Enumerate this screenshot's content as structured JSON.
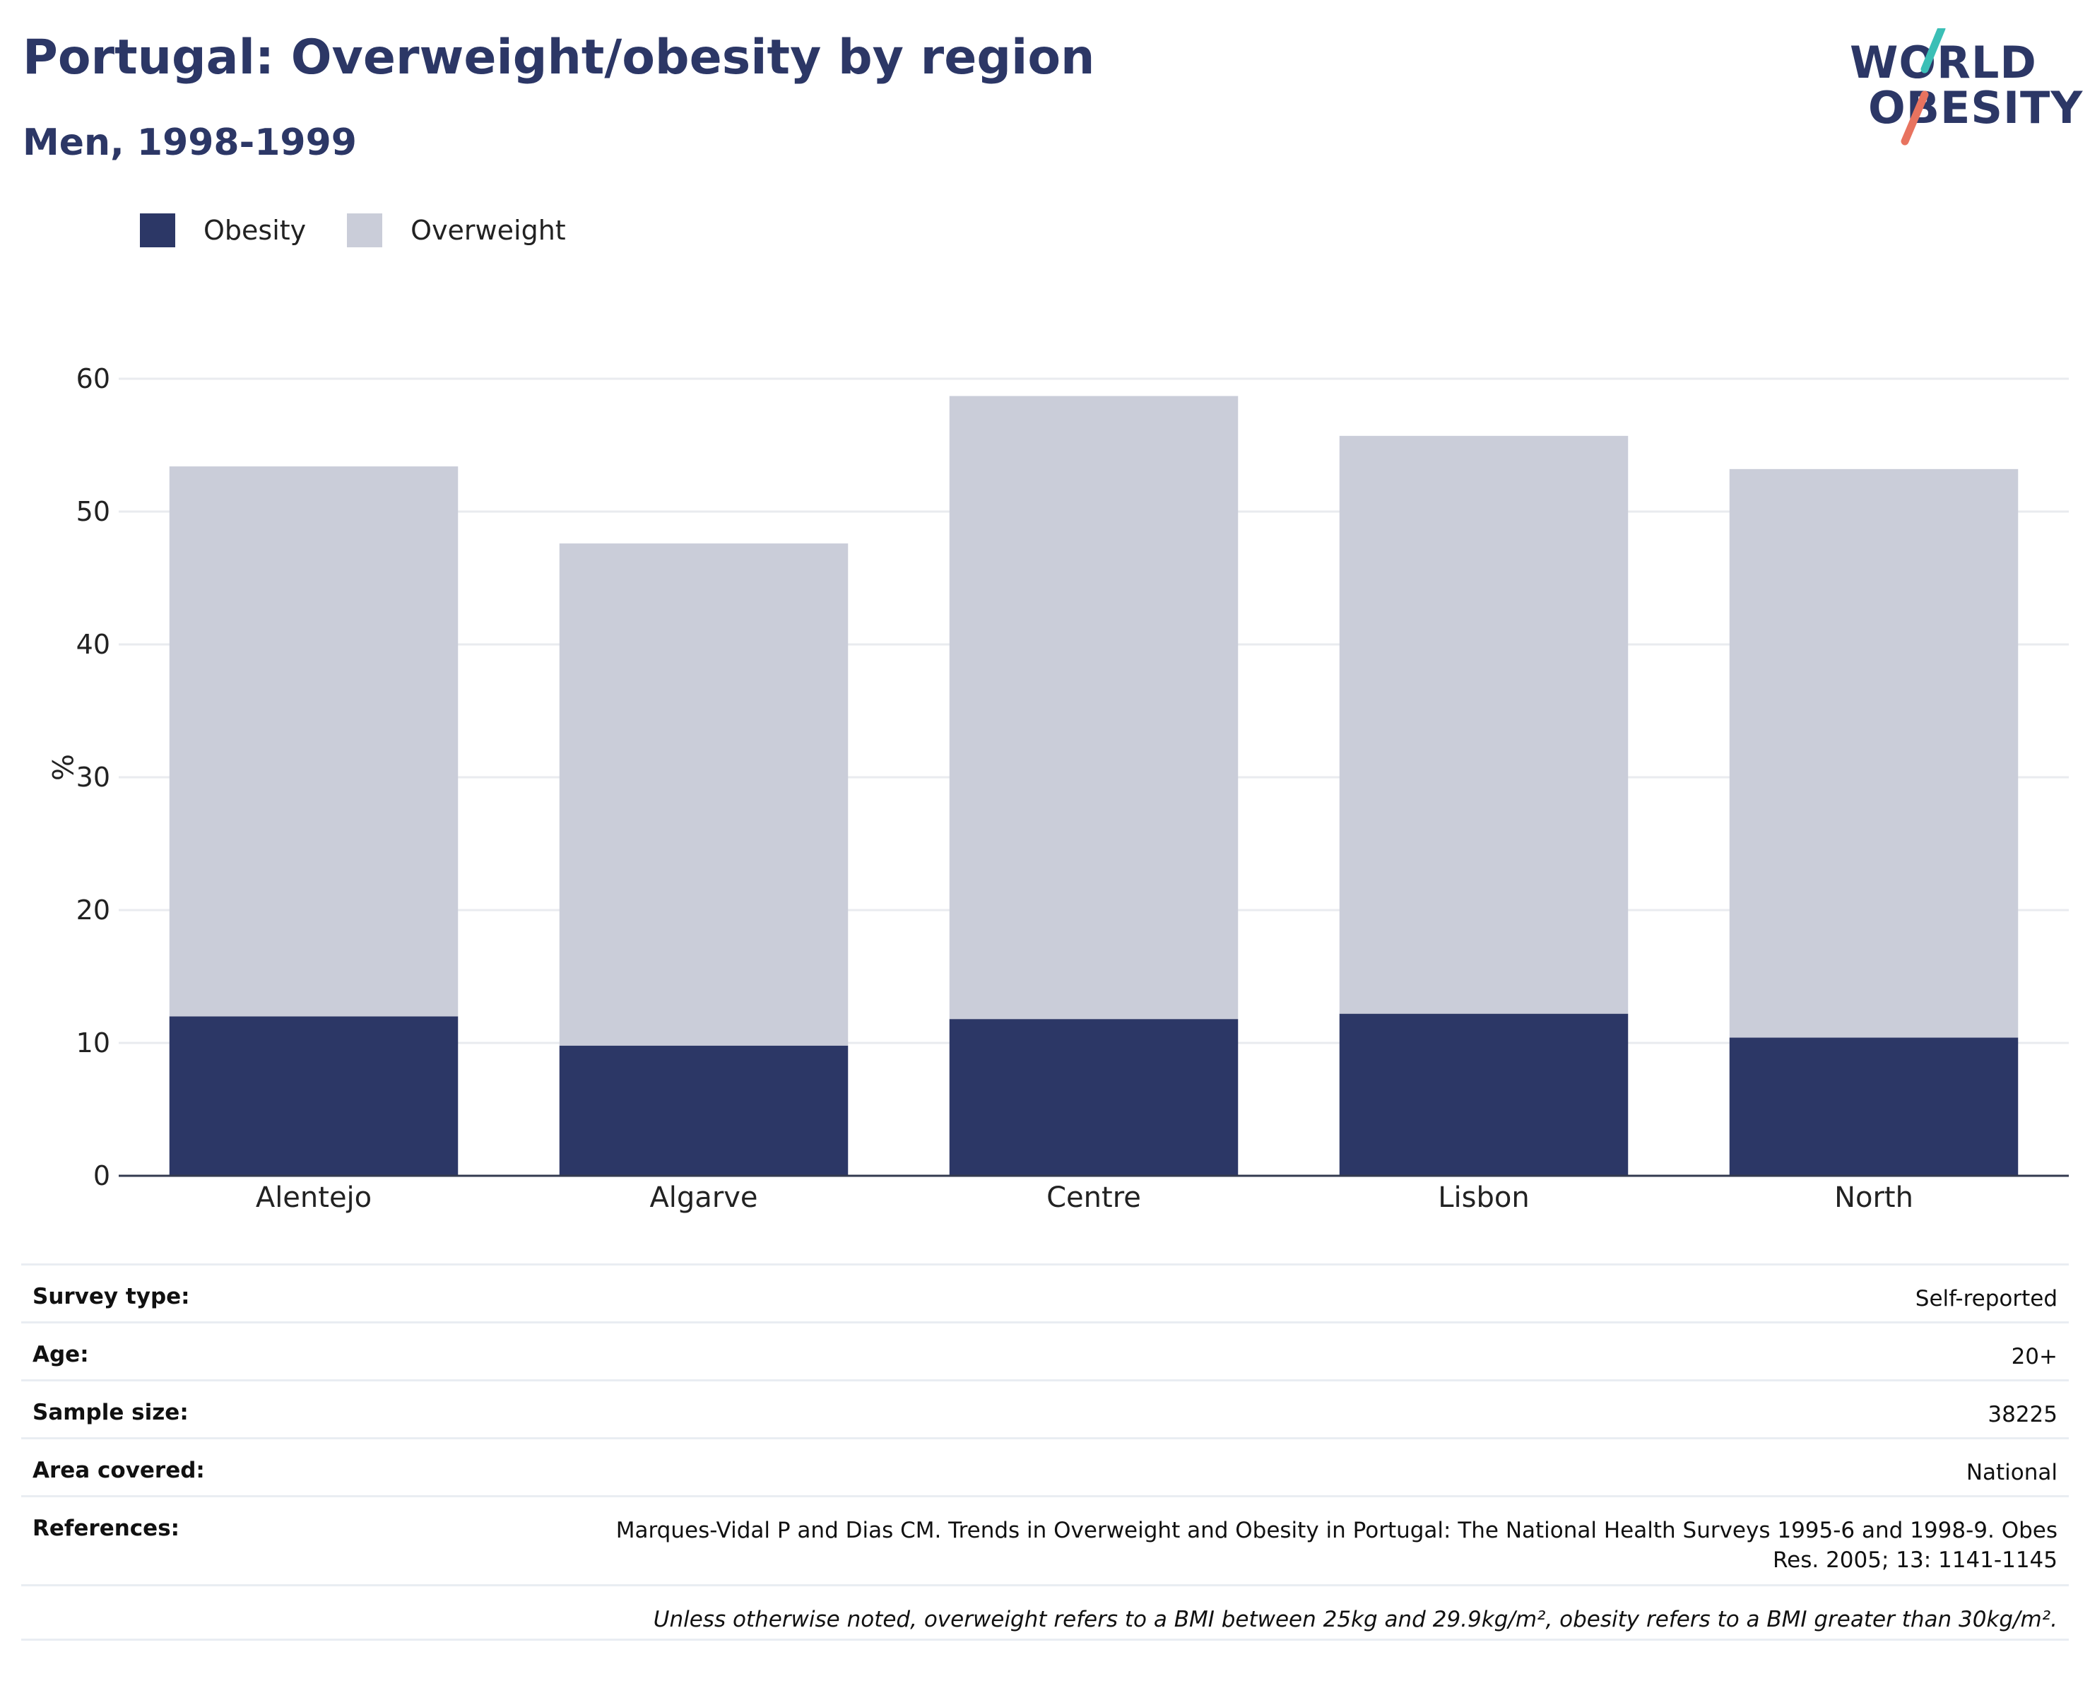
{
  "header": {
    "title": "Portugal: Overweight/obesity by region",
    "subtitle": "Men, 1998-1999"
  },
  "logo": {
    "line1": "WORLD",
    "line2": "OBESITY",
    "accent_teal": "#3bbfb6",
    "accent_coral": "#e8735f"
  },
  "legend": [
    {
      "label": "Obesity",
      "color": "#2c3766"
    },
    {
      "label": "Overweight",
      "color": "#cacdd9"
    }
  ],
  "chart_data": {
    "type": "bar",
    "stacked": true,
    "categories": [
      "Alentejo",
      "Algarve",
      "Centre",
      "Lisbon",
      "North"
    ],
    "series": [
      {
        "name": "Obesity",
        "color": "#2c3766",
        "values": [
          12.0,
          9.8,
          11.8,
          12.2,
          10.4
        ]
      },
      {
        "name": "Overweight",
        "color": "#cacdd9",
        "values": [
          41.4,
          37.8,
          46.9,
          43.5,
          42.8
        ]
      }
    ],
    "ylabel": "%",
    "xlabel": "",
    "ylim": [
      0,
      60
    ],
    "yticks": [
      0,
      10,
      20,
      30,
      40,
      50,
      60
    ],
    "grid": true,
    "legend_position": "top-left"
  },
  "info": {
    "survey_type": {
      "label": "Survey type:",
      "value": "Self-reported"
    },
    "age": {
      "label": "Age:",
      "value": "20+"
    },
    "sample_size": {
      "label": "Sample size:",
      "value": "38225"
    },
    "area": {
      "label": "Area covered:",
      "value": "National"
    },
    "references": {
      "label": "References:",
      "value": "Marques-Vidal P and Dias CM. Trends in Overweight and Obesity in Portugal: The National Health Surveys 1995-6 and 1998-9. Obes Res. 2005; 13: 1141-1145"
    },
    "note": "Unless otherwise noted, overweight refers to a BMI between 25kg and 29.9kg/m², obesity refers to a BMI greater than 30kg/m²."
  }
}
